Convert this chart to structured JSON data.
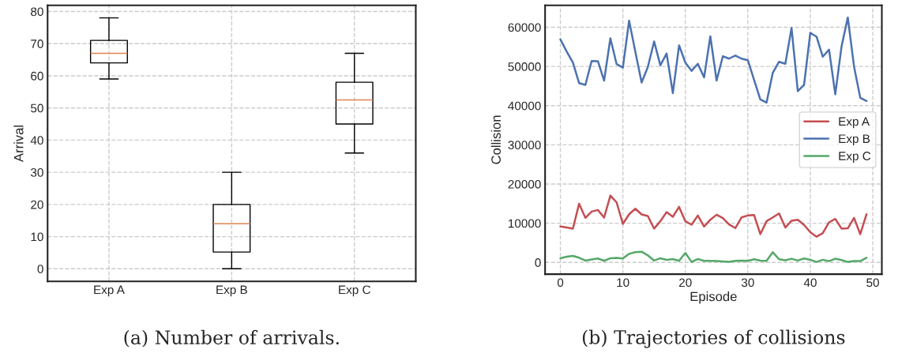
{
  "chart_data": [
    {
      "type": "box",
      "ylabel": "Arrival",
      "categories": [
        "Exp A",
        "Exp B",
        "Exp C"
      ],
      "series": [
        {
          "color": "#000000",
          "boxes": [
            {
              "low": 59,
              "q1": 64,
              "median": 67,
              "q3": 71,
              "high": 78
            },
            {
              "low": 0,
              "q1": 5.2,
              "median": 14,
              "q3": 20,
              "high": 30
            },
            {
              "low": 36,
              "q1": 45,
              "median": 52.5,
              "q3": 58,
              "high": 67
            }
          ]
        }
      ],
      "ylim": [
        -3.9,
        81.9
      ],
      "yticks": [
        0,
        10,
        20,
        30,
        40,
        50,
        60,
        70,
        80
      ],
      "grid": true,
      "annotations": [
        "(a) Number of arrivals."
      ]
    },
    {
      "type": "line",
      "xlabel": "Episode",
      "ylabel": "Collision",
      "x": [
        0,
        1,
        2,
        3,
        4,
        5,
        6,
        7,
        8,
        9,
        10,
        11,
        12,
        13,
        14,
        15,
        16,
        17,
        18,
        19,
        20,
        21,
        22,
        23,
        24,
        25,
        26,
        27,
        28,
        29,
        30,
        31,
        32,
        33,
        34,
        35,
        36,
        37,
        38,
        39,
        40,
        41,
        42,
        43,
        44,
        45,
        46,
        47,
        48,
        49
      ],
      "series": [
        {
          "name": "Exp A",
          "color": "#c44e52",
          "values": [
            9160,
            8900,
            8630,
            14980,
            11370,
            12980,
            13380,
            11440,
            17060,
            15320,
            9830,
            12300,
            13710,
            12240,
            11840,
            8630,
            10500,
            12840,
            11640,
            14180,
            10500,
            9630,
            11970,
            9160,
            10900,
            12170,
            11300,
            9700,
            8760,
            11500,
            11970,
            12100,
            7220,
            10500,
            11500,
            12500,
            8900,
            10640,
            10900,
            9570,
            7700,
            6560,
            7490,
            10230,
            11100,
            8630,
            8700,
            11370,
            7220,
            12300
          ]
        },
        {
          "name": "Exp B",
          "color": "#4c72b0",
          "values": [
            56900,
            53850,
            51000,
            45740,
            45300,
            51400,
            51350,
            46400,
            57200,
            50600,
            49700,
            61700,
            53700,
            45900,
            49900,
            56400,
            50300,
            53300,
            43200,
            55400,
            51000,
            48900,
            50700,
            47200,
            57700,
            46400,
            52600,
            52000,
            52800,
            52000,
            51600,
            46600,
            41600,
            40800,
            48400,
            51200,
            50700,
            59800,
            43700,
            45300,
            58600,
            57600,
            52500,
            54300,
            42900,
            55100,
            62500,
            50000,
            42000,
            41200
          ]
        },
        {
          "name": "Exp C",
          "color": "#55a868",
          "values": [
            1070,
            1470,
            1670,
            1200,
            470,
            740,
            1000,
            400,
            1070,
            1140,
            1000,
            2200,
            2610,
            2740,
            1800,
            470,
            1070,
            670,
            870,
            400,
            2410,
            130,
            870,
            400,
            400,
            330,
            270,
            130,
            400,
            470,
            400,
            800,
            470,
            400,
            2610,
            800,
            540,
            940,
            470,
            1000,
            670,
            130,
            670,
            330,
            940,
            600,
            130,
            330,
            330,
            1200
          ]
        }
      ],
      "xlim": [
        -2.45,
        51.45
      ],
      "xticks": [
        0,
        10,
        20,
        30,
        40,
        50
      ],
      "ylim": [
        -3000,
        65600
      ],
      "yticks": [
        0,
        10000,
        20000,
        30000,
        40000,
        50000,
        60000
      ],
      "grid": true,
      "legend": "right",
      "line_style": "solid",
      "marker": "none",
      "annotations": [
        "(b) Trajectories of collisions"
      ]
    }
  ]
}
